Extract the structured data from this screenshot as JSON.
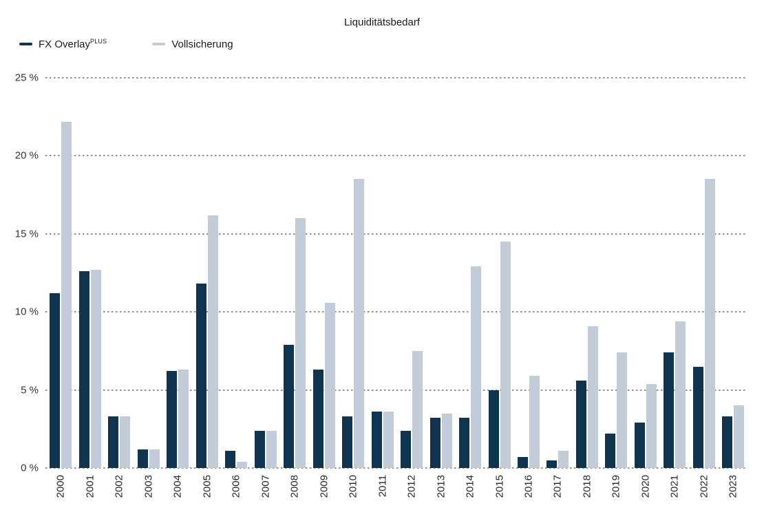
{
  "title": "Liquiditätsbedarf",
  "legend": [
    {
      "label": "FX Overlay",
      "superscript": "PLUS",
      "color": "#0e3450"
    },
    {
      "label": "Vollsicherung",
      "superscript": "",
      "color": "#c2ccd8"
    }
  ],
  "y_axis": {
    "tick_labels": [
      "0 %",
      "5 %",
      "10 %",
      "15 %",
      "20 %",
      "25 %"
    ],
    "min": 0,
    "max": 25,
    "step": 5
  },
  "chart_data": {
    "type": "bar",
    "title": "Liquiditätsbedarf",
    "categories": [
      "2000",
      "2001",
      "2002",
      "2003",
      "2004",
      "2005",
      "2006",
      "2007",
      "2008",
      "2009",
      "2010",
      "2011",
      "2012",
      "2013",
      "2014",
      "2015",
      "2016",
      "2017",
      "2018",
      "2019",
      "2020",
      "2021",
      "2022",
      "2023"
    ],
    "series": [
      {
        "name": "FX OverlayPLUS",
        "color": "#0e3450",
        "values": [
          11.2,
          12.6,
          3.3,
          1.2,
          6.2,
          11.8,
          1.1,
          2.4,
          7.9,
          6.3,
          3.3,
          3.6,
          2.4,
          3.2,
          3.2,
          5.0,
          0.7,
          0.5,
          5.6,
          2.2,
          2.9,
          7.4,
          6.5,
          3.3
        ]
      },
      {
        "name": "Vollsicherung",
        "color": "#c2ccd8",
        "values": [
          22.2,
          12.7,
          3.3,
          1.2,
          6.3,
          16.2,
          0.4,
          2.4,
          16.0,
          10.6,
          18.5,
          3.6,
          7.5,
          3.5,
          12.9,
          14.5,
          5.9,
          1.1,
          9.1,
          7.4,
          5.4,
          9.4,
          18.5,
          4.0
        ]
      }
    ],
    "xlabel": "",
    "ylabel": "",
    "y_unit": "%",
    "ylim": [
      0,
      25
    ],
    "grid": "horizontal-dashed",
    "legend_position": "top-left"
  }
}
